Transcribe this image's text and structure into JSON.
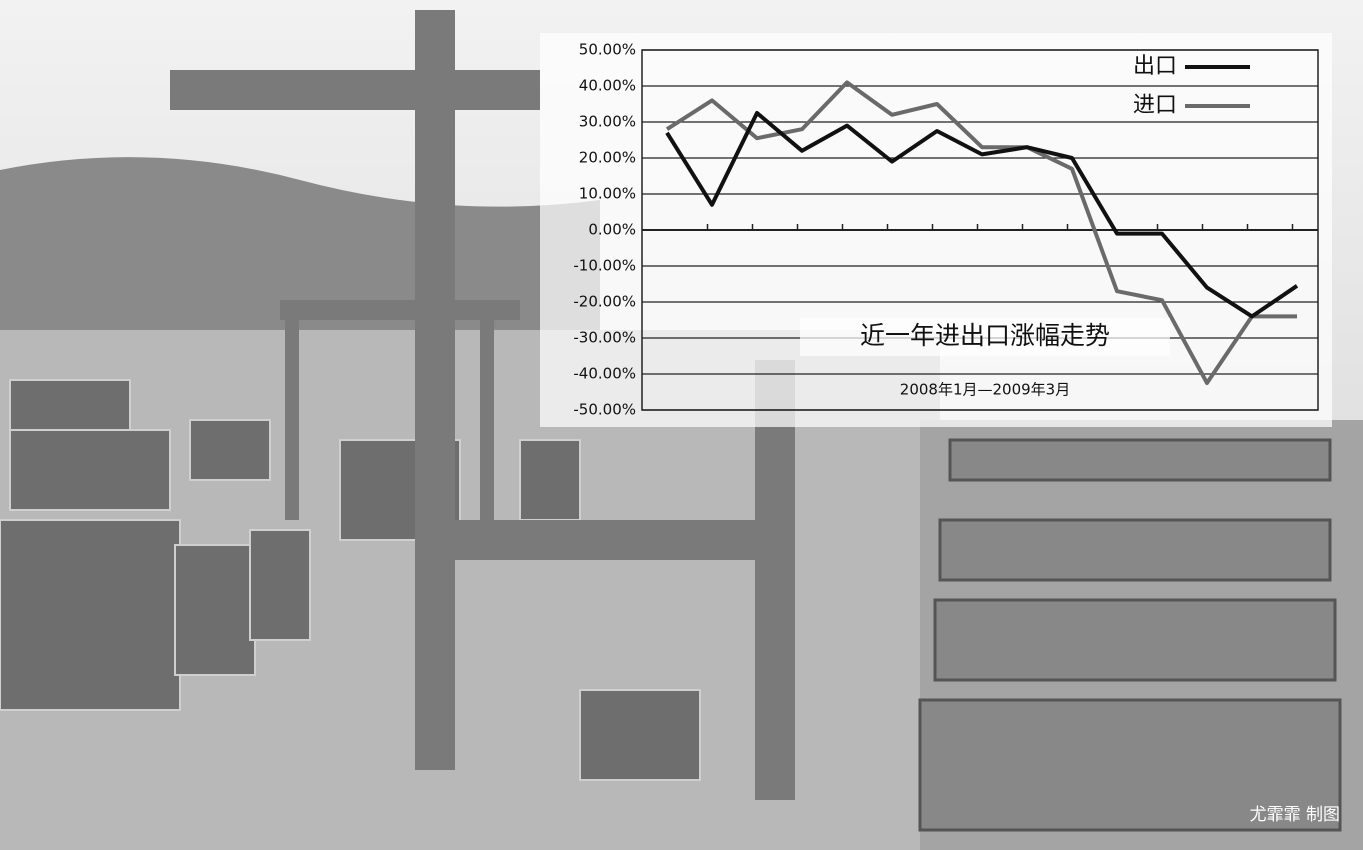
{
  "chart_data": {
    "type": "line",
    "title": "近一年进出口涨幅走势",
    "subtitle": "2008年1月—2009年3月",
    "credit": "尤霏霏 制图",
    "categories": [
      null,
      null,
      null,
      null,
      null,
      null,
      null,
      null,
      null,
      null,
      null,
      null,
      null,
      null,
      null
    ],
    "series": [
      {
        "name": "出口",
        "color": "#111111",
        "values": [
          27,
          7,
          32.5,
          22,
          29,
          19,
          27.5,
          21,
          23,
          20,
          -1,
          -1,
          -16,
          -24,
          -15.5
        ]
      },
      {
        "name": "进口",
        "color": "#6a6a6a",
        "values": [
          28,
          36,
          25.5,
          28,
          41,
          32,
          35,
          23,
          23,
          17,
          -17,
          -19.5,
          -42.5,
          -24,
          -24
        ]
      }
    ],
    "ylim": [
      -50,
      50
    ],
    "yticks": [
      {
        "value": 50,
        "label": "50.00%"
      },
      {
        "value": 40,
        "label": "40.00%"
      },
      {
        "value": 30,
        "label": "30.00%"
      },
      {
        "value": 20,
        "label": "20.00%"
      },
      {
        "value": 10,
        "label": "10.00%"
      },
      {
        "value": 0,
        "label": "0.00%"
      },
      {
        "value": -10,
        "label": "-10.00%"
      },
      {
        "value": -20,
        "label": "-20.00%"
      },
      {
        "value": -30,
        "label": "-30.00%"
      },
      {
        "value": -40,
        "label": "-40.00%"
      },
      {
        "value": -50,
        "label": "-50.00%"
      }
    ],
    "grid": true,
    "legend": "top-right"
  }
}
